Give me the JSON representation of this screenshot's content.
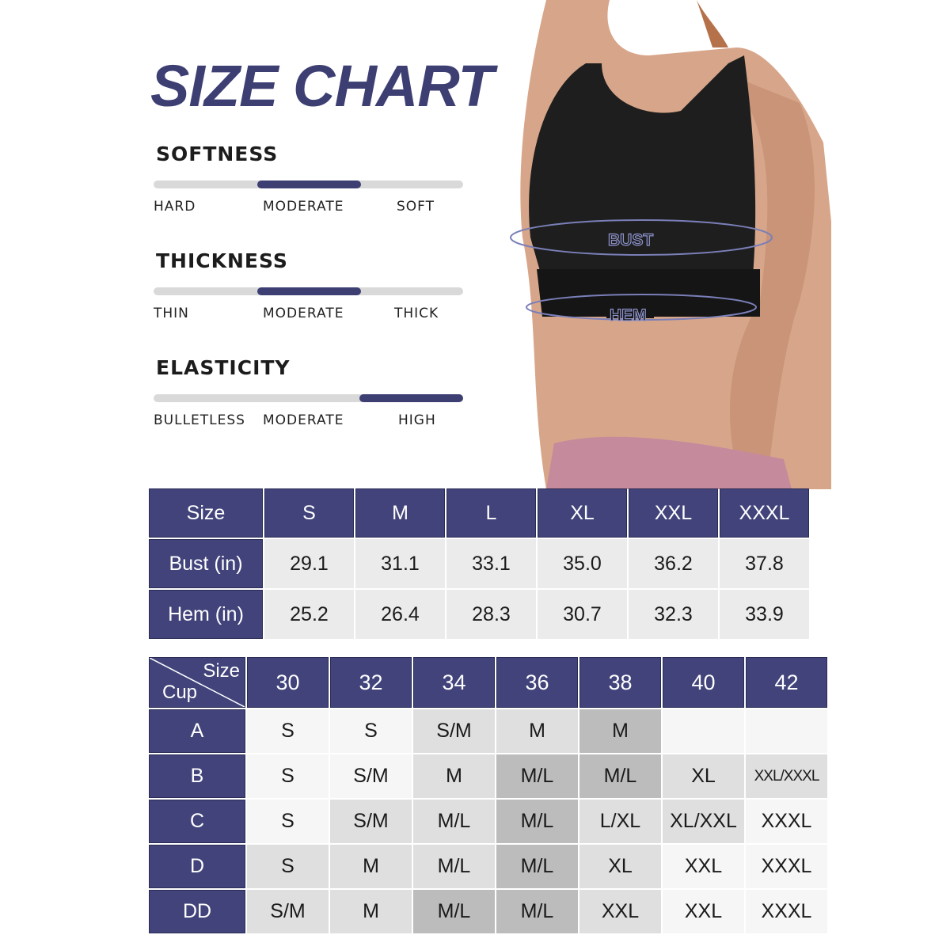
{
  "title": "SIZE CHART",
  "accent_color": "#3d3f73",
  "attributes": [
    {
      "name": "SOFTNESS",
      "labels": [
        "HARD",
        "MODERATE",
        "SOFT"
      ],
      "selected": "MODERATE",
      "selected_index": 1
    },
    {
      "name": "THICKNESS",
      "labels": [
        "THIN",
        "MODERATE",
        "THICK"
      ],
      "selected": "MODERATE",
      "selected_index": 1
    },
    {
      "name": "ELASTICITY",
      "labels": [
        "BULLETLESS",
        "MODERATE",
        "HIGH"
      ],
      "selected": "HIGH",
      "selected_index": 2
    }
  ],
  "photo": {
    "bust_label": "BUST",
    "hem_label": "HEM"
  },
  "measure_table": {
    "header": [
      "Size",
      "S",
      "M",
      "L",
      "XL",
      "XXL",
      "XXXL"
    ],
    "rows": [
      {
        "label": "Bust (in)",
        "values": [
          "29.1",
          "31.1",
          "33.1",
          "35.0",
          "36.2",
          "37.8"
        ]
      },
      {
        "label": "Hem (in)",
        "values": [
          "25.2",
          "26.4",
          "28.3",
          "30.7",
          "32.3",
          "33.9"
        ]
      }
    ]
  },
  "cup_table": {
    "corner_top": "Size",
    "corner_bottom": "Cup",
    "header": [
      "30",
      "32",
      "34",
      "36",
      "38",
      "40",
      "42"
    ],
    "rows": [
      {
        "label": "A",
        "values": [
          "S",
          "S",
          "S/M",
          "M",
          "M",
          "",
          ""
        ],
        "shades": [
          "w",
          "w",
          "l",
          "l",
          "d",
          "w",
          "w"
        ]
      },
      {
        "label": "B",
        "values": [
          "S",
          "S/M",
          "M",
          "M/L",
          "M/L",
          "XL",
          "XXL/XXXL"
        ],
        "shades": [
          "w",
          "w",
          "l",
          "d",
          "d",
          "l",
          "l"
        ]
      },
      {
        "label": "C",
        "values": [
          "S",
          "S/M",
          "M/L",
          "M/L",
          "L/XL",
          "XL/XXL",
          "XXXL"
        ],
        "shades": [
          "w",
          "l",
          "l",
          "d",
          "l",
          "l",
          "w"
        ]
      },
      {
        "label": "D",
        "values": [
          "S",
          "M",
          "M/L",
          "M/L",
          "XL",
          "XXL",
          "XXXL"
        ],
        "shades": [
          "l",
          "l",
          "l",
          "d",
          "l",
          "w",
          "w"
        ]
      },
      {
        "label": "DD",
        "values": [
          "S/M",
          "M",
          "M/L",
          "M/L",
          "XXL",
          "XXL",
          "XXXL"
        ],
        "shades": [
          "l",
          "l",
          "d",
          "d",
          "l",
          "w",
          "w"
        ]
      }
    ]
  }
}
